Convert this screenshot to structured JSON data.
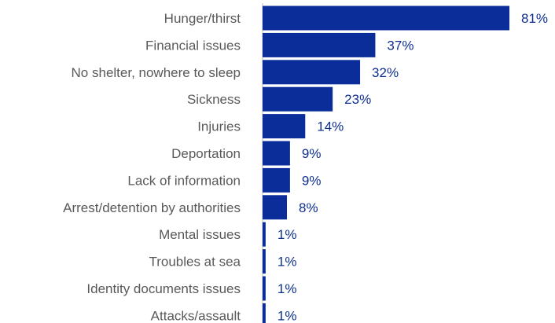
{
  "colors": {
    "bar": "#0a2d9a",
    "category_text": "#595959",
    "value_text": "#0f2f8f",
    "axis_line": "#bfbfbf"
  },
  "chart_data": {
    "type": "bar",
    "orientation": "horizontal",
    "categories": [
      "Hunger/thirst",
      "Financial issues",
      "No shelter, nowhere to sleep",
      "Sickness",
      "Injuries",
      "Deportation",
      "Lack of information",
      "Arrest/detention by authorities",
      "Mental issues",
      "Troubles at sea",
      "Identity documents issues",
      "Attacks/assault"
    ],
    "values": [
      81,
      37,
      32,
      23,
      14,
      9,
      9,
      8,
      1,
      1,
      1,
      1
    ],
    "value_labels": [
      "81%",
      "37%",
      "32%",
      "23%",
      "14%",
      "9%",
      "9%",
      "8%",
      "1%",
      "1%",
      "1%",
      "1%"
    ],
    "title": "",
    "xlabel": "",
    "ylabel": "",
    "xlim": [
      0,
      81
    ],
    "grid": false,
    "legend": "none"
  }
}
